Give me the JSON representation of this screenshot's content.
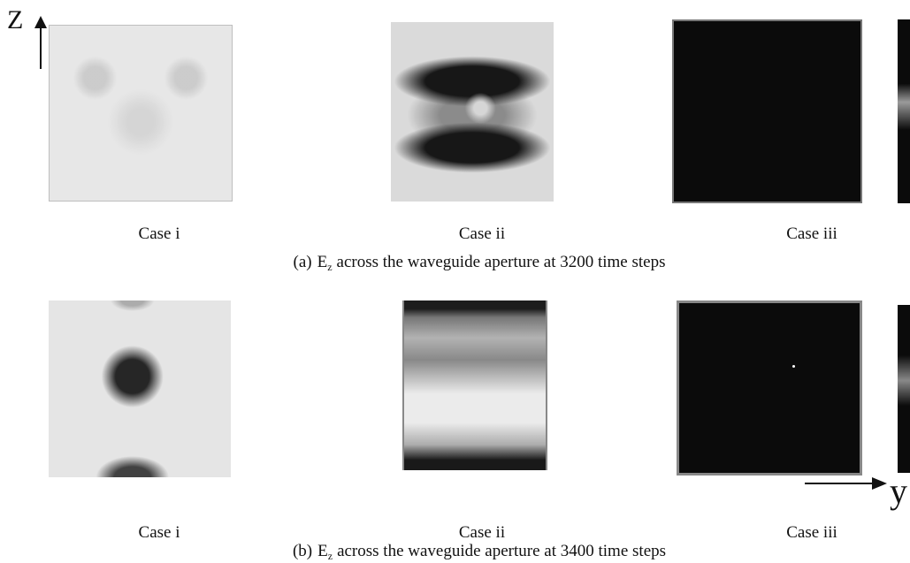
{
  "axes": {
    "vertical": "Z",
    "horizontal": "y"
  },
  "rows": [
    {
      "panels": [
        {
          "label": "Case i"
        },
        {
          "label": "Case ii"
        },
        {
          "label": "Case iii"
        }
      ],
      "caption": {
        "prefix": "(a)",
        "symbol": "E",
        "subscript": "z",
        "text": "across the waveguide aperture at 3200 time steps"
      }
    },
    {
      "panels": [
        {
          "label": "Case i"
        },
        {
          "label": "Case ii"
        },
        {
          "label": "Case iii"
        }
      ],
      "caption": {
        "prefix": "(b)",
        "symbol": "E",
        "subscript": "z",
        "text": "across the waveguide aperture at 3400 time steps"
      }
    }
  ]
}
